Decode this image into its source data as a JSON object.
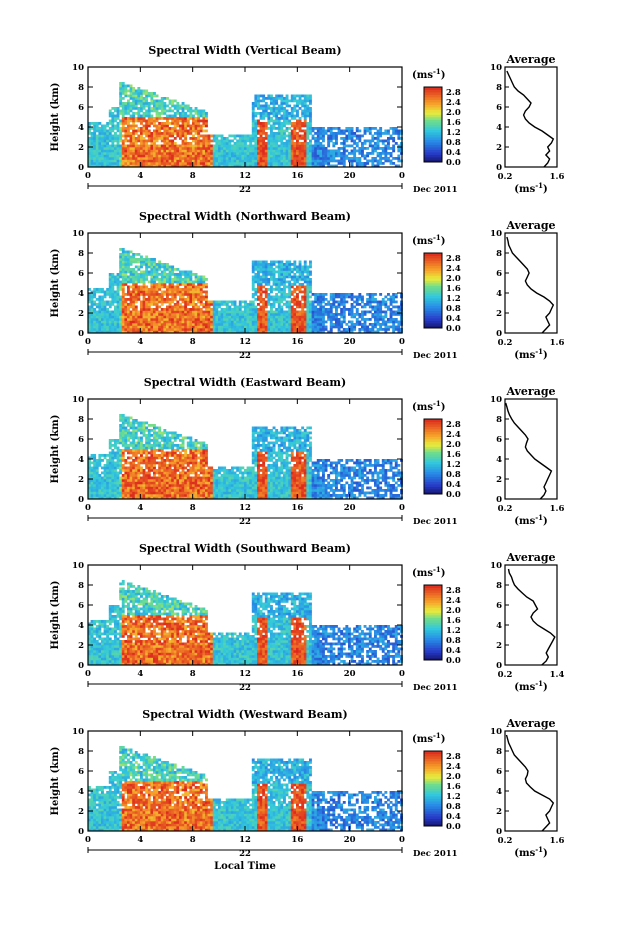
{
  "chart_data": [
    {
      "type": "heatmap",
      "title": "Spectral Width (Vertical Beam)",
      "ylabel": "Height (km)",
      "xlim": [
        0,
        24
      ],
      "ylim": [
        0,
        10
      ],
      "x_ticks": [
        "0",
        "4",
        "8",
        "12",
        "16",
        "20",
        "0"
      ],
      "y_ticks": [
        "0",
        "2",
        "4",
        "6",
        "8",
        "10"
      ],
      "date_left": "22",
      "date_right": "Dec 2011",
      "colorbar": {
        "unit": "(ms",
        "exp": "-1",
        "unit_close": ")",
        "ticks": [
          "0.0",
          "0.4",
          "0.8",
          "1.2",
          "1.6",
          "2.0",
          "2.4",
          "2.8"
        ],
        "range": [
          0,
          3.0
        ]
      },
      "profile": {
        "title": "Average",
        "xlabel": "(ms",
        "x_ticks": [
          "0.2",
          "1.6"
        ],
        "xlim": [
          0.2,
          1.6
        ],
        "x": [
          1.25,
          1.35,
          1.4,
          1.3,
          1.4,
          1.35,
          1.45,
          1.5,
          1.35,
          1.2,
          1.0,
          0.85,
          0.75,
          0.7,
          0.75,
          0.85,
          0.9,
          0.8,
          0.7,
          0.55,
          0.45,
          0.4,
          0.35,
          0.3,
          0.25
        ],
        "y": [
          0,
          0.4,
          0.8,
          1.2,
          1.6,
          2.0,
          2.4,
          2.8,
          3.2,
          3.6,
          4.0,
          4.4,
          4.8,
          5.2,
          5.6,
          6.0,
          6.4,
          6.8,
          7.2,
          7.6,
          8.0,
          8.4,
          8.8,
          9.2,
          9.6
        ]
      }
    },
    {
      "type": "heatmap",
      "title": "Spectral Width (Northward Beam)",
      "ylabel": "Height (km)",
      "xlim": [
        0,
        24
      ],
      "ylim": [
        0,
        10
      ],
      "x_ticks": [
        "0",
        "4",
        "8",
        "12",
        "16",
        "20",
        "0"
      ],
      "y_ticks": [
        "0",
        "2",
        "4",
        "6",
        "8",
        "10"
      ],
      "date_left": "22",
      "date_right": "Dec 2011",
      "colorbar": {
        "unit": "(ms",
        "exp": "-1",
        "unit_close": ")",
        "ticks": [
          "0.0",
          "0.4",
          "0.8",
          "1.2",
          "1.6",
          "2.0",
          "2.4",
          "2.8"
        ],
        "range": [
          0,
          3.0
        ]
      },
      "profile": {
        "title": "Average",
        "xlabel": "(ms",
        "x_ticks": [
          "0.2",
          "1.6"
        ],
        "xlim": [
          0.2,
          1.6
        ],
        "x": [
          1.2,
          1.3,
          1.4,
          1.35,
          1.3,
          1.4,
          1.45,
          1.5,
          1.4,
          1.25,
          1.05,
          0.9,
          0.8,
          0.75,
          0.8,
          0.85,
          0.8,
          0.7,
          0.6,
          0.5,
          0.4,
          0.35,
          0.3,
          0.28,
          0.25
        ],
        "y": [
          0,
          0.4,
          0.8,
          1.2,
          1.6,
          2.0,
          2.4,
          2.8,
          3.2,
          3.6,
          4.0,
          4.4,
          4.8,
          5.2,
          5.6,
          6.0,
          6.4,
          6.8,
          7.2,
          7.6,
          8.0,
          8.4,
          8.8,
          9.2,
          9.6
        ]
      }
    },
    {
      "type": "heatmap",
      "title": "Spectral Width (Eastward Beam)",
      "ylabel": "Height (km)",
      "xlim": [
        0,
        24
      ],
      "ylim": [
        0,
        10
      ],
      "x_ticks": [
        "0",
        "4",
        "8",
        "12",
        "16",
        "20",
        "0"
      ],
      "y_ticks": [
        "0",
        "2",
        "4",
        "6",
        "8",
        "10"
      ],
      "date_left": "22",
      "date_right": "Dec 2011",
      "colorbar": {
        "unit": "(ms",
        "exp": "-1",
        "unit_close": ")",
        "ticks": [
          "0.0",
          "0.4",
          "0.8",
          "1.2",
          "1.6",
          "2.0",
          "2.4",
          "2.8"
        ],
        "range": [
          0,
          3.0
        ]
      },
      "profile": {
        "title": "Average",
        "xlabel": "(ms",
        "x_ticks": [
          "0.2",
          "1.6"
        ],
        "xlim": [
          0.2,
          1.6
        ],
        "x": [
          1.15,
          1.25,
          1.3,
          1.25,
          1.3,
          1.35,
          1.4,
          1.45,
          1.3,
          1.15,
          1.0,
          0.9,
          0.8,
          0.75,
          0.78,
          0.82,
          0.75,
          0.65,
          0.55,
          0.45,
          0.38,
          0.32,
          0.28,
          0.25,
          0.22
        ],
        "y": [
          0,
          0.4,
          0.8,
          1.2,
          1.6,
          2.0,
          2.4,
          2.8,
          3.2,
          3.6,
          4.0,
          4.4,
          4.8,
          5.2,
          5.6,
          6.0,
          6.4,
          6.8,
          7.2,
          7.6,
          8.0,
          8.4,
          8.8,
          9.2,
          9.6
        ]
      }
    },
    {
      "type": "heatmap",
      "title": "Spectral Width (Southward Beam)",
      "ylabel": "Height (km)",
      "xlim": [
        0,
        24
      ],
      "ylim": [
        0,
        10
      ],
      "x_ticks": [
        "0",
        "4",
        "8",
        "12",
        "16",
        "20",
        "0"
      ],
      "y_ticks": [
        "0",
        "2",
        "4",
        "6",
        "8",
        "10"
      ],
      "date_left": "22",
      "date_right": "Dec 2011",
      "colorbar": {
        "unit": "(ms",
        "exp": "-1",
        "unit_close": ")",
        "ticks": [
          "0.0",
          "0.4",
          "0.8",
          "1.2",
          "1.6",
          "2.0",
          "2.4",
          "2.8"
        ],
        "range": [
          0,
          3.0
        ]
      },
      "profile": {
        "title": "Average",
        "xlabel": "(ms",
        "x_ticks": [
          "0.2",
          "1.4"
        ],
        "xlim": [
          0.2,
          1.4
        ],
        "x": [
          1.05,
          1.15,
          1.2,
          1.15,
          1.2,
          1.25,
          1.3,
          1.35,
          1.25,
          1.1,
          0.95,
          0.85,
          0.8,
          0.85,
          0.95,
          0.9,
          0.85,
          0.7,
          0.6,
          0.5,
          0.42,
          0.38,
          0.35,
          0.3,
          0.28
        ],
        "y": [
          0,
          0.4,
          0.8,
          1.2,
          1.6,
          2.0,
          2.4,
          2.8,
          3.2,
          3.6,
          4.0,
          4.4,
          4.8,
          5.2,
          5.6,
          6.0,
          6.4,
          6.8,
          7.2,
          7.6,
          8.0,
          8.4,
          8.8,
          9.2,
          9.6
        ]
      }
    },
    {
      "type": "heatmap",
      "title": "Spectral Width (Westward Beam)",
      "ylabel": "Height (km)",
      "xlabel": "Local Time",
      "xlim": [
        0,
        24
      ],
      "ylim": [
        0,
        10
      ],
      "x_ticks": [
        "0",
        "4",
        "8",
        "12",
        "16",
        "20",
        "0"
      ],
      "y_ticks": [
        "0",
        "2",
        "4",
        "6",
        "8",
        "10"
      ],
      "date_left": "22",
      "date_right": "Dec 2011",
      "colorbar": {
        "unit": "(ms",
        "exp": "-1",
        "unit_close": ")",
        "ticks": [
          "0.0",
          "0.4",
          "0.8",
          "1.2",
          "1.6",
          "2.0",
          "2.4",
          "2.8"
        ],
        "range": [
          0,
          3.0
        ]
      },
      "profile": {
        "title": "Average",
        "xlabel": "(ms",
        "x_ticks": [
          "0.2",
          "1.6"
        ],
        "xlim": [
          0.2,
          1.6
        ],
        "x": [
          1.2,
          1.3,
          1.4,
          1.35,
          1.3,
          1.4,
          1.45,
          1.5,
          1.4,
          1.2,
          1.0,
          0.88,
          0.78,
          0.75,
          0.8,
          0.82,
          0.75,
          0.65,
          0.55,
          0.45,
          0.4,
          0.35,
          0.3,
          0.27,
          0.24
        ],
        "y": [
          0,
          0.4,
          0.8,
          1.2,
          1.6,
          2.0,
          2.4,
          2.8,
          3.2,
          3.6,
          4.0,
          4.4,
          4.8,
          5.2,
          5.6,
          6.0,
          6.4,
          6.8,
          7.2,
          7.6,
          8.0,
          8.4,
          8.8,
          9.2,
          9.6
        ]
      }
    }
  ]
}
